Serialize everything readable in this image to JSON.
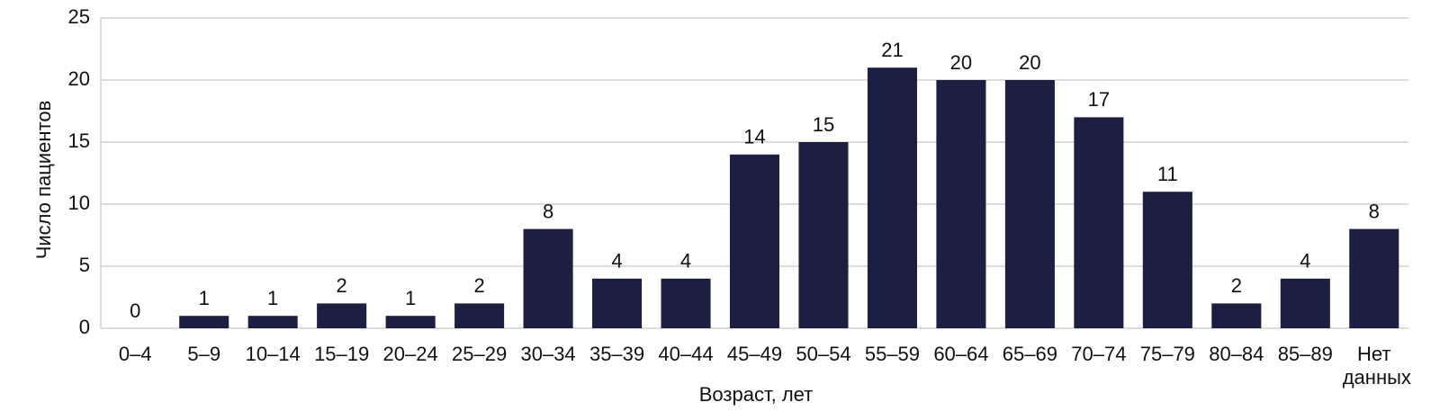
{
  "chart_data": {
    "type": "bar",
    "x_label": "Возраст, лет",
    "y_label": "Число пациентов",
    "categories": [
      "0–4",
      "5–9",
      "10–14",
      "15–19",
      "20–24",
      "25–29",
      "30–34",
      "35–39",
      "40–44",
      "45–49",
      "50–54",
      "55–59",
      "60–64",
      "65–69",
      "70–74",
      "75–79",
      "80–84",
      "85–89",
      "Нет данных"
    ],
    "values": [
      0,
      1,
      1,
      2,
      1,
      2,
      8,
      4,
      4,
      14,
      15,
      21,
      20,
      20,
      17,
      11,
      2,
      4,
      8
    ],
    "color": "#1c1f42",
    "ylim": [
      0,
      25
    ],
    "yticks": [
      0,
      5,
      10,
      15,
      20,
      25
    ],
    "grid": true
  }
}
